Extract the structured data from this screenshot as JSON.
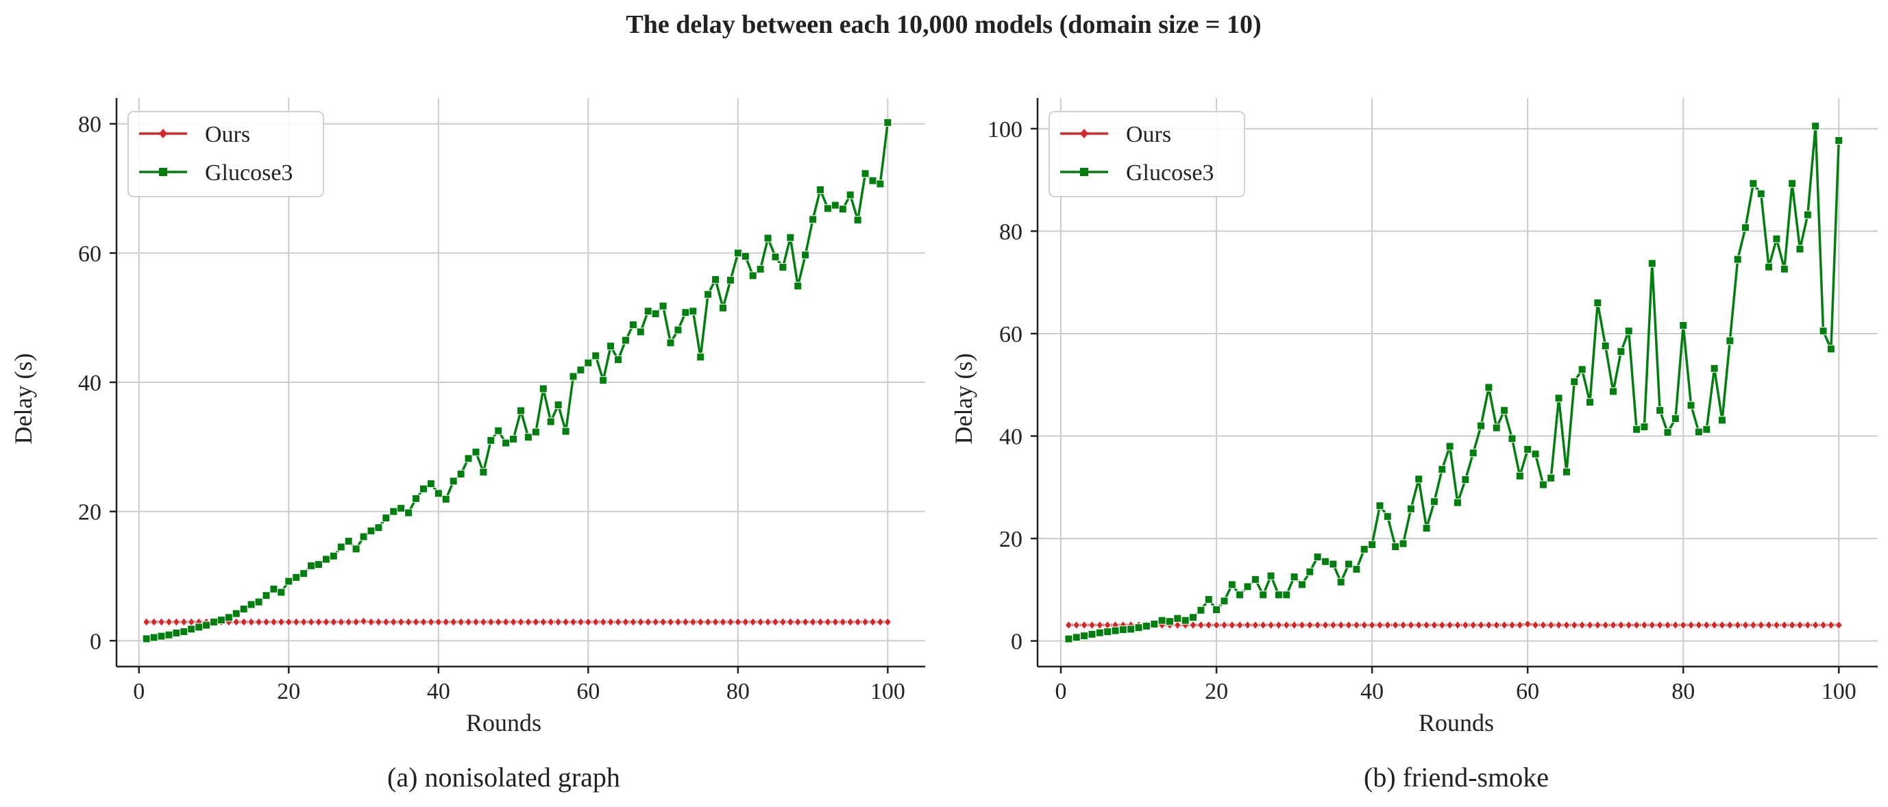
{
  "figure": {
    "title": "The delay between each 10,000 models (domain size = 10)",
    "colors": {
      "ours": "#d62728",
      "glucose3": "#007f0e",
      "grid": "#cccccc",
      "axis": "#222222"
    }
  },
  "chart_data": [
    {
      "type": "line",
      "caption": "(a) nonisolated graph",
      "xlabel": "Rounds",
      "ylabel": "Delay (s)",
      "xlim": [
        -3,
        105
      ],
      "ylim": [
        -4,
        84
      ],
      "xticks": [
        0,
        20,
        40,
        60,
        80,
        100
      ],
      "yticks": [
        0,
        20,
        40,
        60,
        80
      ],
      "grid": true,
      "legend": "top-left",
      "x": [
        1,
        2,
        3,
        4,
        5,
        6,
        7,
        8,
        9,
        10,
        11,
        12,
        13,
        14,
        15,
        16,
        17,
        18,
        19,
        20,
        21,
        22,
        23,
        24,
        25,
        26,
        27,
        28,
        29,
        30,
        31,
        32,
        33,
        34,
        35,
        36,
        37,
        38,
        39,
        40,
        41,
        42,
        43,
        44,
        45,
        46,
        47,
        48,
        49,
        50,
        51,
        52,
        53,
        54,
        55,
        56,
        57,
        58,
        59,
        60,
        61,
        62,
        63,
        64,
        65,
        66,
        67,
        68,
        69,
        70,
        71,
        72,
        73,
        74,
        75,
        76,
        77,
        78,
        79,
        80,
        81,
        82,
        83,
        84,
        85,
        86,
        87,
        88,
        89,
        90,
        91,
        92,
        93,
        94,
        95,
        96,
        97,
        98,
        99,
        100
      ],
      "series": [
        {
          "name": "Ours",
          "marker": "diamond",
          "values": [
            2.9,
            2.9,
            2.9,
            2.9,
            2.9,
            2.9,
            2.9,
            2.9,
            2.9,
            2.9,
            2.9,
            2.9,
            2.9,
            2.9,
            2.9,
            2.9,
            2.9,
            2.9,
            2.9,
            2.9,
            2.9,
            2.9,
            2.9,
            2.9,
            2.9,
            2.9,
            2.9,
            2.9,
            2.9,
            3.0,
            2.9,
            2.9,
            2.9,
            2.9,
            2.9,
            2.9,
            2.9,
            2.9,
            2.9,
            2.9,
            2.9,
            2.9,
            2.9,
            2.9,
            2.9,
            2.9,
            2.9,
            2.9,
            2.9,
            2.9,
            2.9,
            2.9,
            2.9,
            2.9,
            2.9,
            2.9,
            2.9,
            2.9,
            2.9,
            2.9,
            2.9,
            2.9,
            2.9,
            2.9,
            2.9,
            2.9,
            2.9,
            2.9,
            2.9,
            2.9,
            2.9,
            2.9,
            2.9,
            2.9,
            2.9,
            2.9,
            2.9,
            2.9,
            2.9,
            2.9,
            2.9,
            2.9,
            2.9,
            2.9,
            2.9,
            2.9,
            2.9,
            2.9,
            2.9,
            2.9,
            2.9,
            2.9,
            2.9,
            2.9,
            2.9,
            2.9,
            2.9,
            2.9,
            2.9,
            2.9
          ]
        },
        {
          "name": "Glucose3",
          "marker": "square",
          "values": [
            0.3,
            0.5,
            0.7,
            0.9,
            1.2,
            1.4,
            1.8,
            2.1,
            2.4,
            2.9,
            3.2,
            3.6,
            4.2,
            4.9,
            5.6,
            6.0,
            7.0,
            8.0,
            7.5,
            9.2,
            9.8,
            10.4,
            11.6,
            11.8,
            12.6,
            13.1,
            14.5,
            15.4,
            14.2,
            16.1,
            17.0,
            17.5,
            19.0,
            20.0,
            20.5,
            19.8,
            22.0,
            23.5,
            24.3,
            22.8,
            21.9,
            24.7,
            25.8,
            28.2,
            29.2,
            26.1,
            31.0,
            32.5,
            30.6,
            31.2,
            35.6,
            31.5,
            32.3,
            39.0,
            33.9,
            36.5,
            32.4,
            40.9,
            41.9,
            43.0,
            44.1,
            40.3,
            45.6,
            43.5,
            46.5,
            48.9,
            47.8,
            51.0,
            50.6,
            51.8,
            46.1,
            48.1,
            50.8,
            51.0,
            43.9,
            53.6,
            55.9,
            51.5,
            55.8,
            60.0,
            59.5,
            56.5,
            57.5,
            62.3,
            59.4,
            57.8,
            62.4,
            54.9,
            59.7,
            65.2,
            69.8,
            66.9,
            67.4,
            66.8,
            69.0,
            65.1,
            72.3,
            71.2,
            70.7,
            80.2
          ]
        }
      ]
    },
    {
      "type": "line",
      "caption": "(b) friend-smoke",
      "xlabel": "Rounds",
      "ylabel": "Delay (s)",
      "xlim": [
        -3,
        105
      ],
      "ylim": [
        -5,
        106
      ],
      "xticks": [
        0,
        20,
        40,
        60,
        80,
        100
      ],
      "yticks": [
        0,
        20,
        40,
        60,
        80,
        100
      ],
      "grid": true,
      "legend": "top-left",
      "x": [
        1,
        2,
        3,
        4,
        5,
        6,
        7,
        8,
        9,
        10,
        11,
        12,
        13,
        14,
        15,
        16,
        17,
        18,
        19,
        20,
        21,
        22,
        23,
        24,
        25,
        26,
        27,
        28,
        29,
        30,
        31,
        32,
        33,
        34,
        35,
        36,
        37,
        38,
        39,
        40,
        41,
        42,
        43,
        44,
        45,
        46,
        47,
        48,
        49,
        50,
        51,
        52,
        53,
        54,
        55,
        56,
        57,
        58,
        59,
        60,
        61,
        62,
        63,
        64,
        65,
        66,
        67,
        68,
        69,
        70,
        71,
        72,
        73,
        74,
        75,
        76,
        77,
        78,
        79,
        80,
        81,
        82,
        83,
        84,
        85,
        86,
        87,
        88,
        89,
        90,
        91,
        92,
        93,
        94,
        95,
        96,
        97,
        98,
        99,
        100
      ],
      "series": [
        {
          "name": "Ours",
          "marker": "diamond",
          "values": [
            3.1,
            3.1,
            3.1,
            3.1,
            3.1,
            3.1,
            3.1,
            3.1,
            3.1,
            3.1,
            3.1,
            3.1,
            3.1,
            3.1,
            3.1,
            3.1,
            3.1,
            3.1,
            3.1,
            3.1,
            3.1,
            3.1,
            3.1,
            3.1,
            3.1,
            3.1,
            3.1,
            3.1,
            3.1,
            3.1,
            3.1,
            3.1,
            3.1,
            3.1,
            3.1,
            3.1,
            3.1,
            3.1,
            3.1,
            3.1,
            3.1,
            3.1,
            3.1,
            3.1,
            3.1,
            3.1,
            3.1,
            3.1,
            3.1,
            3.1,
            3.1,
            3.1,
            3.1,
            3.1,
            3.1,
            3.1,
            3.1,
            3.1,
            3.1,
            3.3,
            3.1,
            3.1,
            3.1,
            3.1,
            3.1,
            3.1,
            3.1,
            3.1,
            3.1,
            3.1,
            3.1,
            3.1,
            3.1,
            3.1,
            3.1,
            3.1,
            3.1,
            3.1,
            3.1,
            3.1,
            3.1,
            3.1,
            3.1,
            3.1,
            3.1,
            3.1,
            3.1,
            3.1,
            3.1,
            3.1,
            3.1,
            3.1,
            3.1,
            3.1,
            3.1,
            3.1,
            3.1,
            3.1,
            3.1,
            3.1
          ]
        },
        {
          "name": "Glucose3",
          "marker": "square",
          "values": [
            0.4,
            0.7,
            1.0,
            1.3,
            1.6,
            1.8,
            2.0,
            2.2,
            2.3,
            2.6,
            2.9,
            3.3,
            4.0,
            3.8,
            4.4,
            4.0,
            4.6,
            6.0,
            8.1,
            6.1,
            7.8,
            11.0,
            9.0,
            10.6,
            12.0,
            9.0,
            12.7,
            9.0,
            9.0,
            12.5,
            11.0,
            13.5,
            16.4,
            15.5,
            15.0,
            11.5,
            15.0,
            14.0,
            17.9,
            18.8,
            26.4,
            24.3,
            18.4,
            19.0,
            25.8,
            31.6,
            22.0,
            27.2,
            33.5,
            38.0,
            27.0,
            31.5,
            36.7,
            42.0,
            49.5,
            41.6,
            45.0,
            39.5,
            32.2,
            37.4,
            36.5,
            30.5,
            31.8,
            47.4,
            33.0,
            50.6,
            53.0,
            46.6,
            66.0,
            57.6,
            48.7,
            56.5,
            60.5,
            41.3,
            41.8,
            73.7,
            45.0,
            40.7,
            43.4,
            61.6,
            46.0,
            40.8,
            41.3,
            53.2,
            43.1,
            58.6,
            74.5,
            80.7,
            89.3,
            87.3,
            73.0,
            78.5,
            72.6,
            89.3,
            76.5,
            83.2,
            100.5,
            60.5,
            57.0,
            97.7
          ]
        }
      ]
    }
  ]
}
